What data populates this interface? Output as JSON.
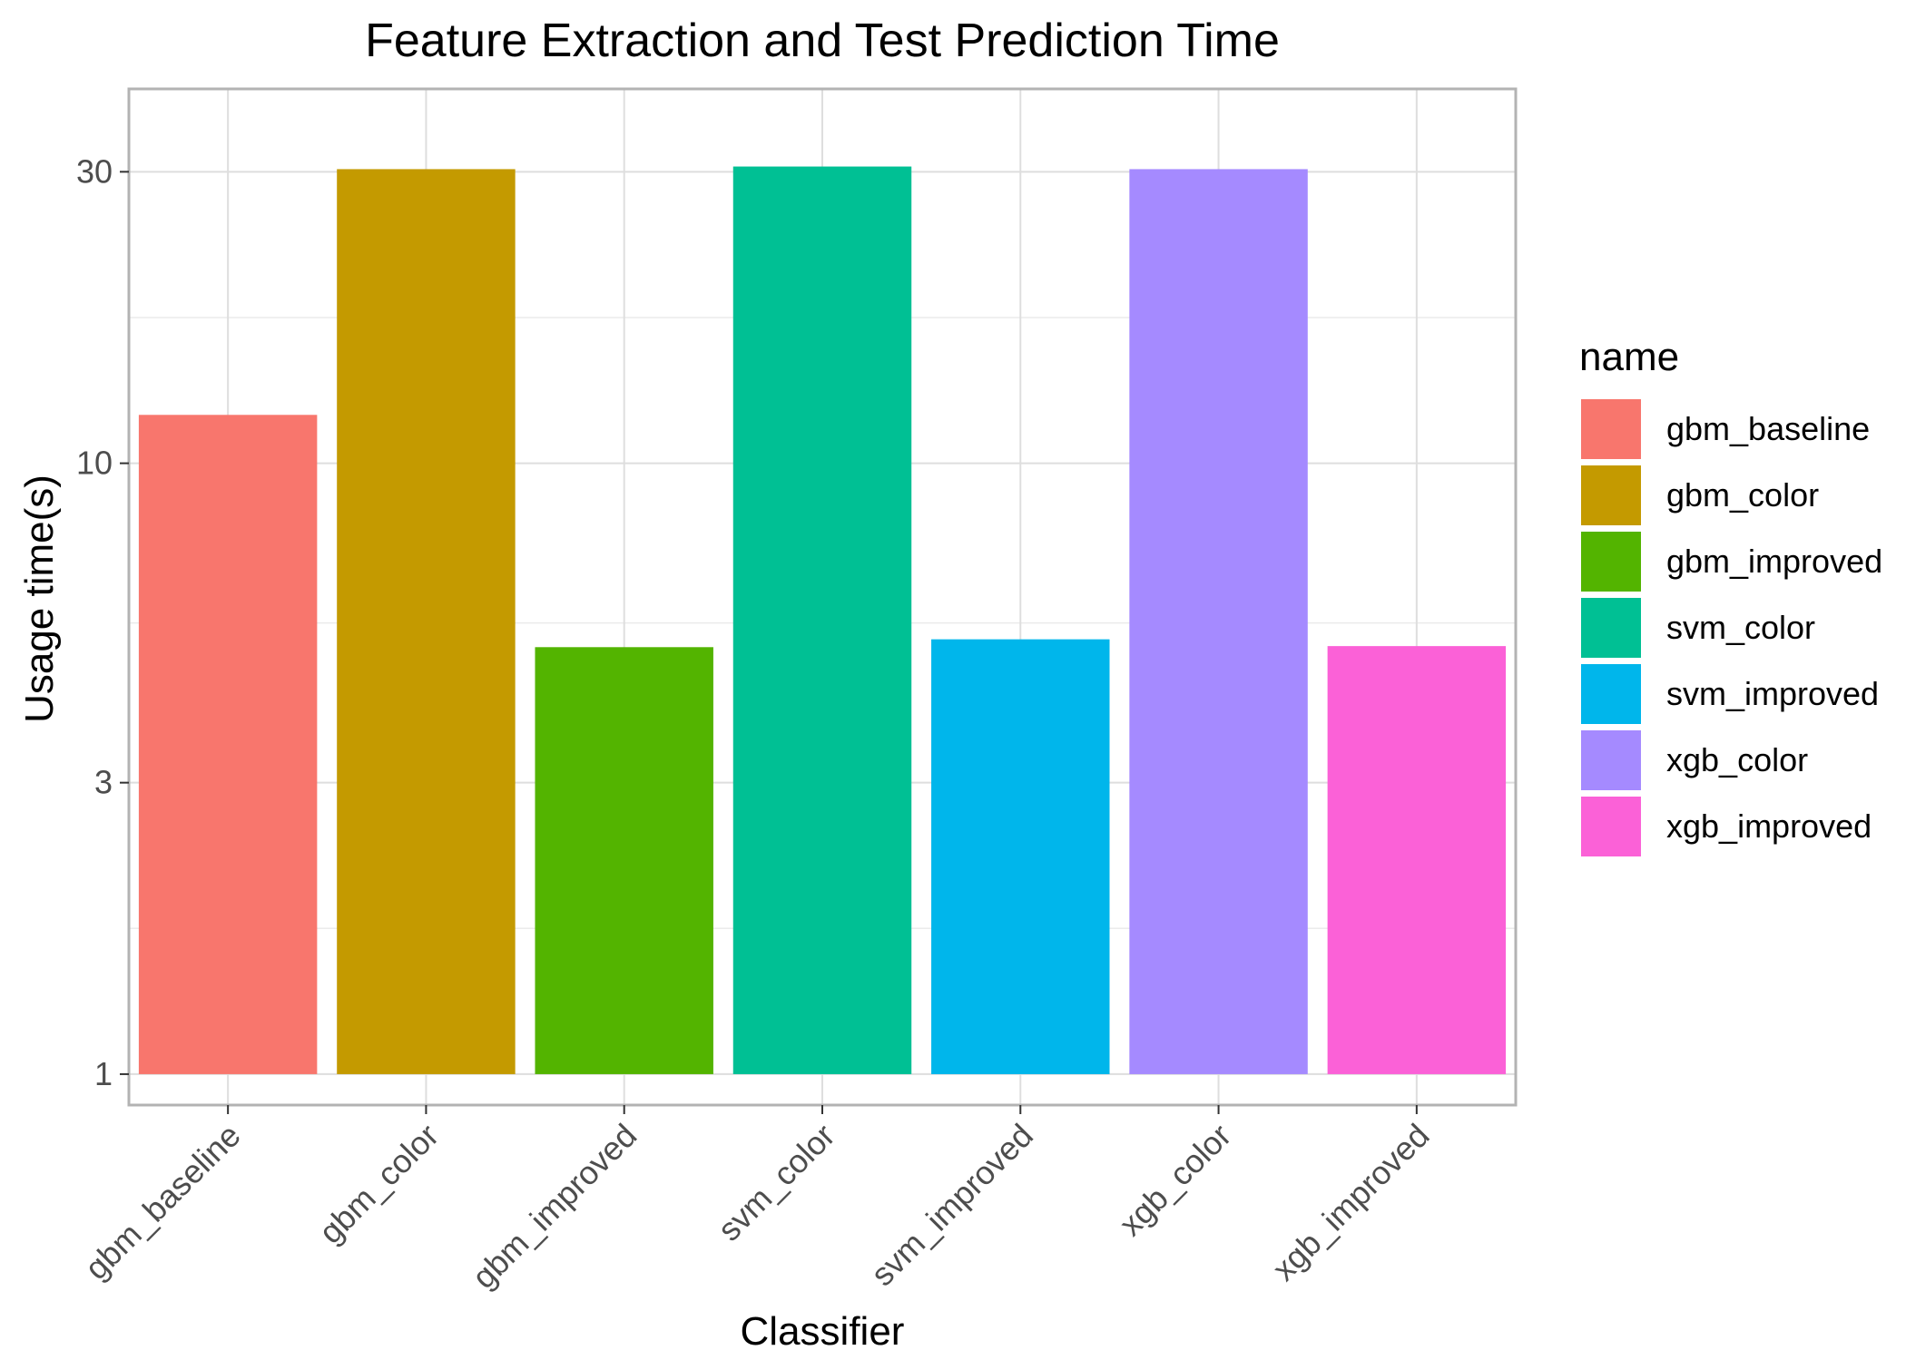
{
  "chart_data": {
    "type": "bar",
    "title": "Feature Extraction and Test Prediction Time",
    "xlabel": "Classifier",
    "ylabel": "Usage time(s)",
    "y_scale": "log10",
    "ylim": [
      0.89,
      41
    ],
    "y_ticks": [
      1,
      3,
      10,
      30
    ],
    "y_tick_labels": [
      "1",
      "3",
      "10",
      "30"
    ],
    "grid": true,
    "categories": [
      "gbm_baseline",
      "gbm_color",
      "gbm_improved",
      "svm_color",
      "svm_improved",
      "xgb_color",
      "xgb_improved"
    ],
    "values": [
      12.0,
      30.3,
      5.0,
      30.6,
      5.15,
      30.3,
      5.02
    ],
    "colors": [
      "#F8766D",
      "#C49A00",
      "#53B400",
      "#00C094",
      "#00B6EB",
      "#A58AFF",
      "#FB61D7"
    ],
    "legend": {
      "title": "name",
      "position": "right",
      "entries": [
        "gbm_baseline",
        "gbm_color",
        "gbm_improved",
        "svm_color",
        "svm_improved",
        "xgb_color",
        "xgb_improved"
      ]
    }
  }
}
